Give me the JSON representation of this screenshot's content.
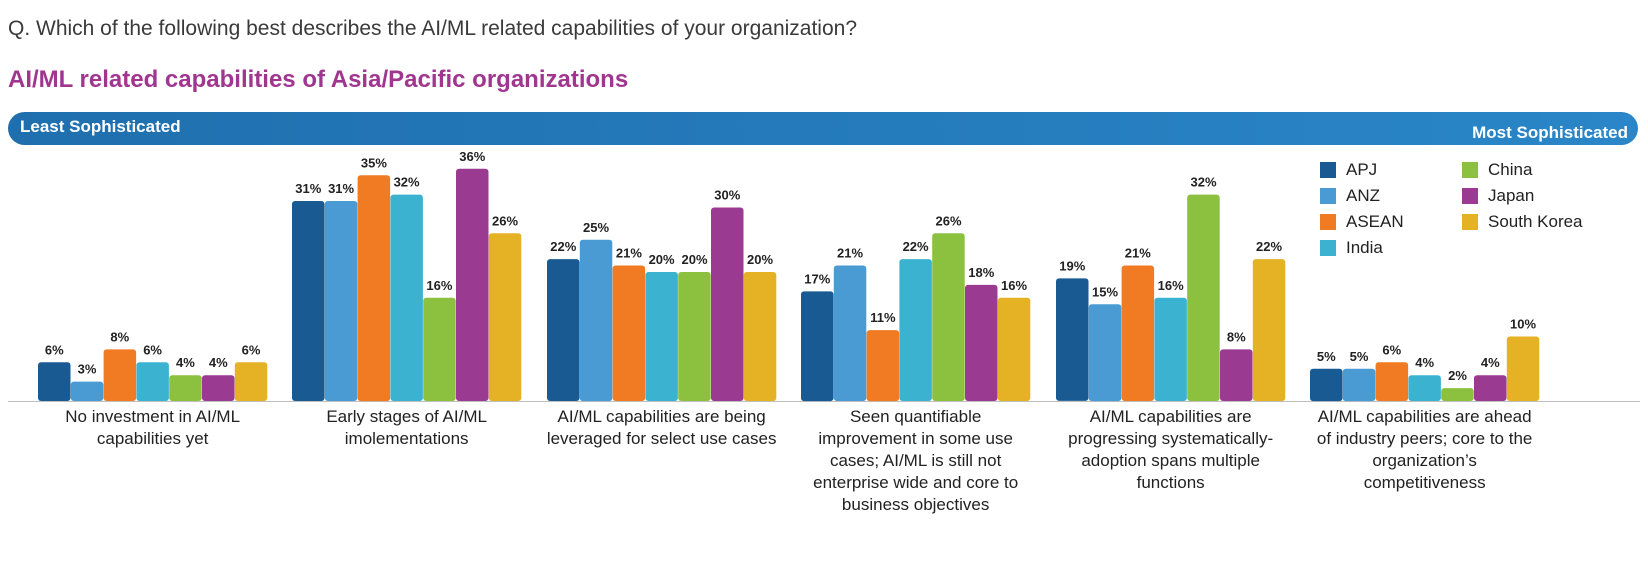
{
  "question": "Q. Which of the following best describes the AI/ML related capabilities of your organization?",
  "subtitle": "AI/ML related capabilities of Asia/Pacific organizations",
  "scale": {
    "left": "Least Sophisticated",
    "right": "Most Sophisticated"
  },
  "colors": {
    "APJ": "#1a5a93",
    "ANZ": "#4a9bd4",
    "ASEAN": "#f07b22",
    "India": "#3bb3d0",
    "China": "#8cc03f",
    "Japan": "#9b3a91",
    "South Korea": "#e5b125"
  },
  "chart_data": {
    "type": "bar",
    "title": "AI/ML related capabilities of Asia/Pacific organizations",
    "legend_position": "top-right",
    "grid": false,
    "ylim": [
      0,
      40
    ],
    "categories": [
      "No investment in AI/ML capabilities yet",
      "Early stages of AI/ML imolementations",
      "AI/ML capabilities are being leveraged for select use cases",
      "Seen quantifiable improvement in some use cases; AI/ML is still not enterprise wide and core to business objectives",
      "AI/ML capabilities are progressing systematically-adoption spans multiple functions",
      "AI/ML capabilities are ahead of industry peers; core to the organization’s competitiveness"
    ],
    "series": [
      {
        "name": "APJ",
        "values": [
          6,
          31,
          22,
          17,
          19,
          5
        ]
      },
      {
        "name": "ANZ",
        "values": [
          3,
          31,
          25,
          21,
          15,
          5
        ]
      },
      {
        "name": "ASEAN",
        "values": [
          8,
          35,
          21,
          11,
          21,
          6
        ]
      },
      {
        "name": "India",
        "values": [
          6,
          32,
          20,
          22,
          16,
          4
        ]
      },
      {
        "name": "China",
        "values": [
          4,
          16,
          20,
          26,
          32,
          2
        ]
      },
      {
        "name": "Japan",
        "values": [
          4,
          36,
          30,
          18,
          8,
          4
        ]
      },
      {
        "name": "South Korea",
        "values": [
          6,
          26,
          20,
          16,
          22,
          10
        ]
      }
    ],
    "value_suffix": "%"
  }
}
